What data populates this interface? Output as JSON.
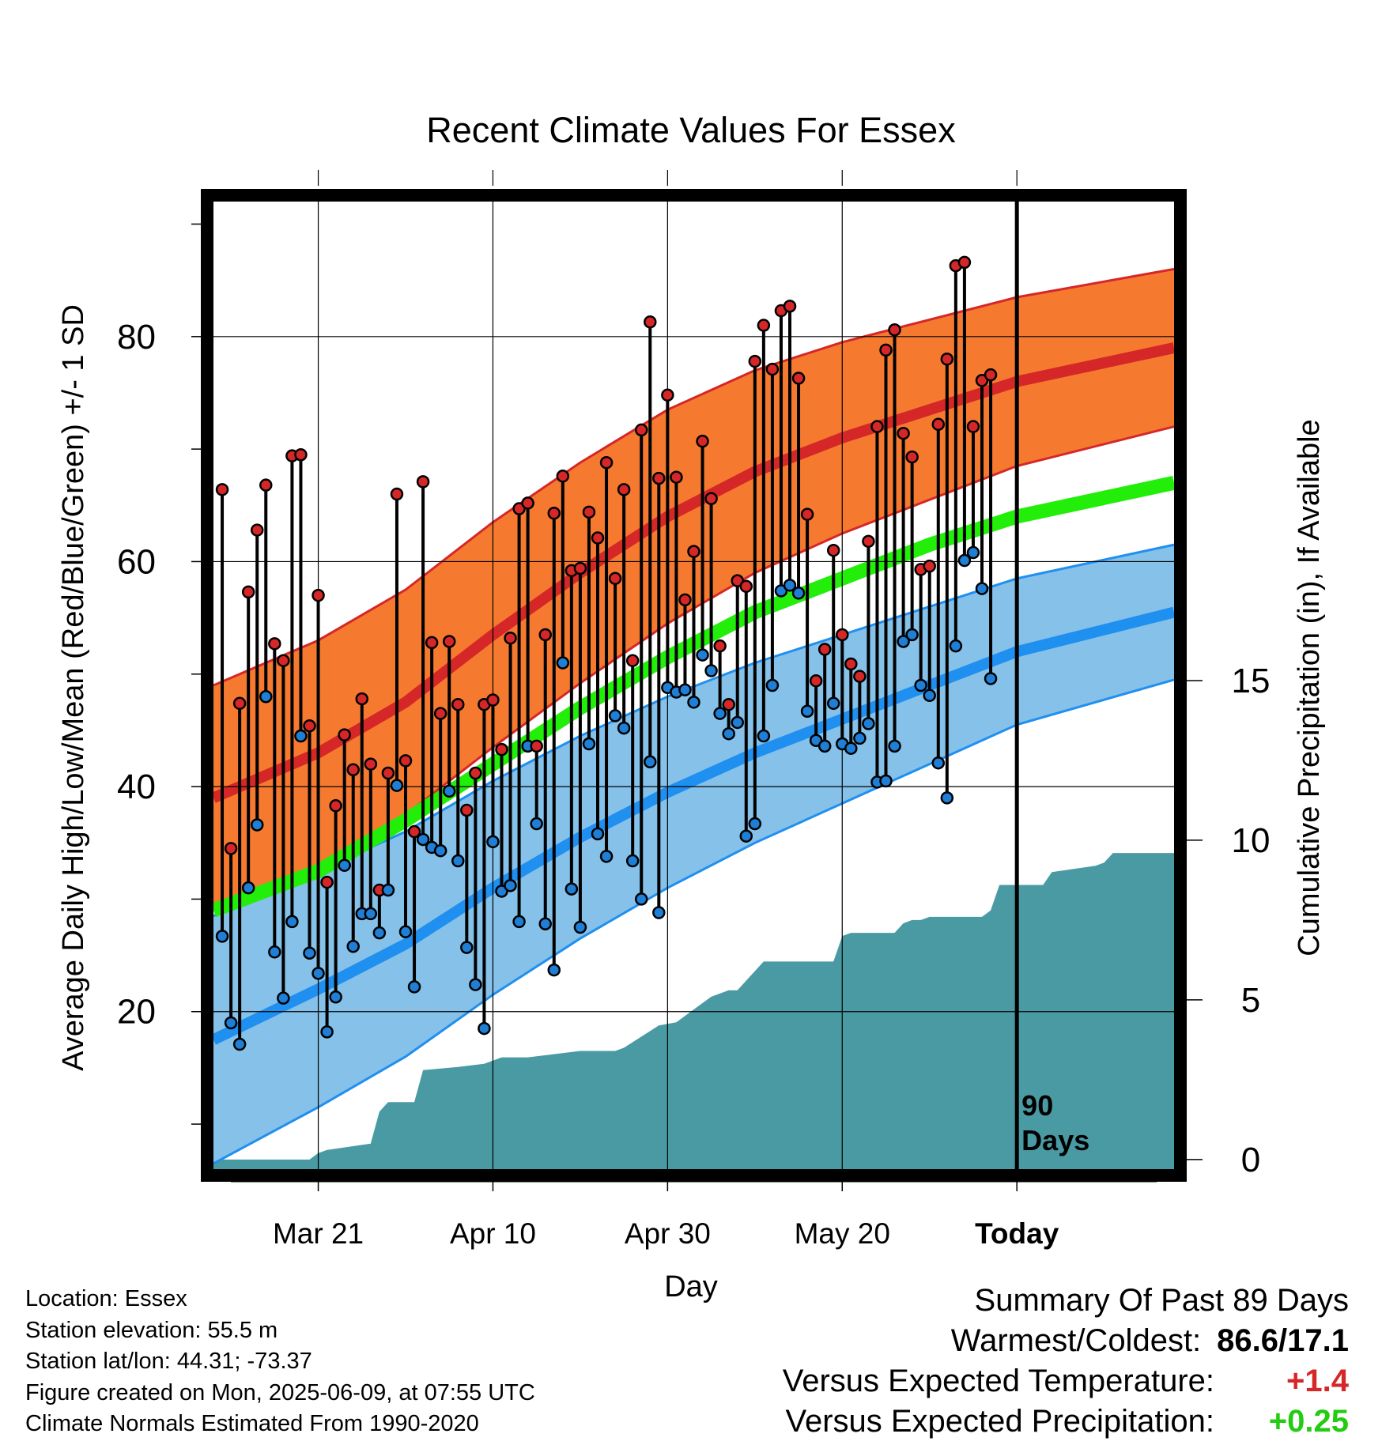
{
  "chart_data": {
    "type": "line",
    "title": "Recent Climate Values For Essex",
    "xlabel": "Day",
    "ylabel": "Average Daily High/Low/Mean (Red/Blue/Green) +/- 1 SD",
    "y2label": "Cumulative Precipitation (in), If Available",
    "xlim": [
      -12,
      98
    ],
    "ylim": [
      6,
      92
    ],
    "y2lim": [
      -0.3,
      30
    ],
    "x_ticks": [
      {
        "day": 0,
        "label": "Mar 21"
      },
      {
        "day": 20,
        "label": "Apr 10"
      },
      {
        "day": 40,
        "label": "Apr 30"
      },
      {
        "day": 60,
        "label": "May 20"
      },
      {
        "day": 80,
        "label": "Today"
      }
    ],
    "y_ticks": [
      20,
      40,
      60,
      80
    ],
    "y2_ticks": [
      0,
      5,
      10,
      15
    ],
    "today_day": 80,
    "today_label": [
      "90",
      "Days"
    ],
    "grid": true,
    "normals": {
      "days": [
        -12,
        0,
        10,
        20,
        30,
        40,
        50,
        60,
        70,
        80,
        98
      ],
      "high_mean": [
        39,
        43,
        47.5,
        53.5,
        59,
        64,
        68,
        71,
        73.5,
        76,
        79
      ],
      "high_sd": [
        10,
        10,
        10,
        10,
        9.8,
        9.5,
        9,
        8.5,
        8,
        7.5,
        7
      ],
      "low_mean": [
        17.5,
        22,
        26,
        31,
        35.5,
        39.5,
        43,
        46,
        49,
        52,
        55.5
      ],
      "low_sd": [
        11,
        10.5,
        10,
        9.5,
        9,
        8.5,
        8,
        7.5,
        7,
        6.5,
        6
      ],
      "avg_mean": [
        29,
        32.5,
        37,
        42,
        47,
        51.5,
        55.5,
        58.5,
        61.5,
        64,
        67
      ]
    },
    "series": [
      {
        "name": "Red",
        "values": [
          66.4,
          34.5,
          47.4,
          57.3,
          62.8,
          66.8,
          52.7,
          51.2,
          69.4,
          69.5,
          45.4,
          57.0,
          31.5,
          38.3,
          44.6,
          41.5,
          47.8,
          42.0,
          30.8,
          41.2,
          66.0,
          42.3,
          36.0,
          67.1,
          52.8,
          46.5,
          52.9,
          47.3,
          37.9,
          41.2,
          47.3,
          47.7,
          43.3,
          53.2,
          64.7,
          65.2,
          43.6,
          53.5,
          64.3,
          67.6,
          59.2,
          59.4,
          64.4,
          62.1,
          68.8,
          58.5,
          66.4,
          51.2,
          71.7,
          81.3,
          67.4,
          74.8,
          67.5,
          56.6,
          60.9,
          70.7,
          65.6,
          52.5,
          47.3,
          58.3,
          57.8,
          77.8,
          81.0,
          77.1,
          82.3,
          82.7,
          76.3,
          64.2,
          49.4,
          52.2,
          61.0,
          53.5,
          50.9,
          49.8,
          61.8,
          72.0,
          78.8,
          80.6,
          71.4,
          69.3,
          59.3,
          59.6,
          72.2,
          78.0,
          86.3,
          86.6,
          72.0,
          76.1,
          76.6
        ]
      },
      {
        "name": "Blue",
        "values": [
          26.7,
          19.0,
          17.1,
          31.0,
          36.6,
          48.0,
          25.3,
          21.2,
          28.0,
          44.5,
          25.2,
          23.4,
          18.2,
          21.3,
          33.0,
          25.8,
          28.7,
          28.7,
          27.0,
          30.8,
          40.1,
          27.1,
          22.2,
          35.3,
          34.6,
          34.3,
          39.6,
          33.4,
          25.7,
          22.4,
          18.5,
          35.1,
          30.7,
          31.2,
          28.0,
          43.6,
          36.7,
          27.8,
          23.7,
          51.0,
          30.9,
          27.5,
          43.8,
          35.8,
          33.8,
          46.3,
          45.2,
          33.4,
          30.0,
          42.2,
          28.8,
          48.8,
          48.4,
          48.6,
          47.5,
          51.7,
          50.3,
          46.5,
          44.7,
          45.7,
          35.6,
          36.7,
          44.5,
          49.0,
          57.4,
          57.9,
          57.2,
          46.7,
          44.1,
          43.6,
          47.4,
          43.8,
          43.4,
          44.3,
          45.6,
          40.4,
          40.5,
          43.6,
          52.9,
          53.5,
          49.0,
          48.1,
          42.1,
          39.0,
          52.5,
          60.1,
          60.8,
          57.6,
          49.6
        ]
      }
    ],
    "precipitation": {
      "days": [
        -12,
        -1,
        0,
        1,
        6,
        7,
        8,
        11,
        12,
        16,
        19,
        21,
        24,
        30,
        34,
        35,
        39,
        41,
        43,
        45,
        47,
        48,
        50,
        51,
        52,
        53,
        58,
        59,
        60,
        61,
        62,
        64,
        66,
        67,
        68,
        69,
        70,
        76,
        77,
        78,
        80,
        82,
        83,
        84,
        89,
        90,
        91,
        98
      ],
      "values": [
        0,
        0,
        0.2,
        0.3,
        0.5,
        1.5,
        1.8,
        1.8,
        2.8,
        2.9,
        3.0,
        3.2,
        3.2,
        3.4,
        3.4,
        3.5,
        4.2,
        4.3,
        4.7,
        5.1,
        5.3,
        5.3,
        5.9,
        6.2,
        6.2,
        6.2,
        6.2,
        6.2,
        7.0,
        7.1,
        7.1,
        7.1,
        7.1,
        7.4,
        7.5,
        7.5,
        7.6,
        7.6,
        7.8,
        8.6,
        8.6,
        8.6,
        8.6,
        9.0,
        9.2,
        9.3,
        9.6,
        9.6
      ]
    }
  },
  "info": {
    "location": "Location: Essex",
    "elevation": "Station elevation: 55.5 m",
    "latlon": "Station lat/lon: 44.31; -73.37",
    "created": "Figure created on Mon, 2025-06-09, at 07:55 UTC",
    "normals": "Climate Normals Estimated From 1990-2020"
  },
  "summary": {
    "heading": "Summary Of Past 89 Days",
    "warmest_label": "Warmest/Coldest:",
    "warmest_value": "86.6/17.1",
    "temp_label": "Versus Expected Temperature:",
    "temp_value": "+1.4",
    "precip_label": "Versus Expected Precipitation:",
    "precip_value": "+0.25"
  },
  "colors": {
    "high_band": "#f57a30",
    "high_line": "#d62728",
    "high_edge": "#d62728",
    "low_band": "#85c1e8",
    "low_line": "#1f8ff0",
    "low_edge": "#1f8ff0",
    "avg_line": "#22ee0a",
    "precip_fill": "#4a9aa4",
    "high_point": "#d62728",
    "low_point": "#1f7fd6",
    "positive_temp": "#d62728",
    "positive_precip": "#22cc11"
  }
}
